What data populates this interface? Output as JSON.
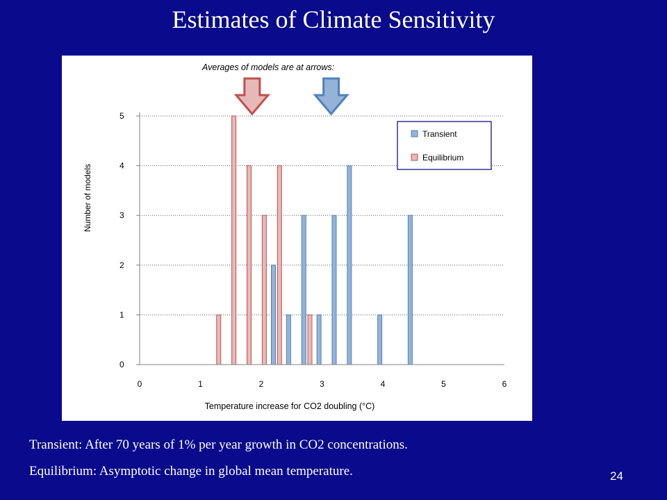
{
  "slide": {
    "title": "Estimates of Climate Sensitivity",
    "caption_transient": "Transient: After 70 years of 1% per year growth in CO2 concentrations.",
    "caption_equilibrium": "Equilibrium: Asymptotic change in global mean temperature.",
    "page_number": "24",
    "background_color": "#0a0a8c"
  },
  "chart_data": {
    "type": "bar",
    "title": "",
    "annotation": "Averages of models are at arrows:",
    "xlabel": "Temperature increase for CO2 doubling (°C)",
    "ylabel": "Number of models",
    "xlim": [
      0,
      6
    ],
    "ylim": [
      0,
      5
    ],
    "x_ticks": [
      "0",
      "1",
      "2",
      "3",
      "4",
      "5",
      "6"
    ],
    "y_ticks": [
      "0",
      "1",
      "2",
      "3",
      "4",
      "5"
    ],
    "grid": "horizontal dotted",
    "legend_position": "top-right",
    "series": [
      {
        "name": "Transient",
        "color": "#95b3d7",
        "stroke": "#4f81bd",
        "x": [
          2.2,
          2.45,
          2.7,
          2.95,
          3.2,
          3.45,
          3.95,
          4.45
        ],
        "values": [
          2,
          1,
          3,
          1,
          3,
          4,
          1,
          3
        ]
      },
      {
        "name": "Equilibrium",
        "color": "#e6b9b8",
        "stroke": "#c0504d",
        "x": [
          1.3,
          1.55,
          1.8,
          2.05,
          2.3,
          2.8
        ],
        "values": [
          1,
          5,
          4,
          3,
          4,
          1
        ]
      }
    ],
    "average_arrows": [
      {
        "series": "Equilibrium",
        "x": 1.85,
        "fill": "#e6b9b8",
        "stroke": "#c0504d"
      },
      {
        "series": "Transient",
        "x": 3.15,
        "fill": "#95b3d7",
        "stroke": "#4f81bd"
      }
    ]
  }
}
